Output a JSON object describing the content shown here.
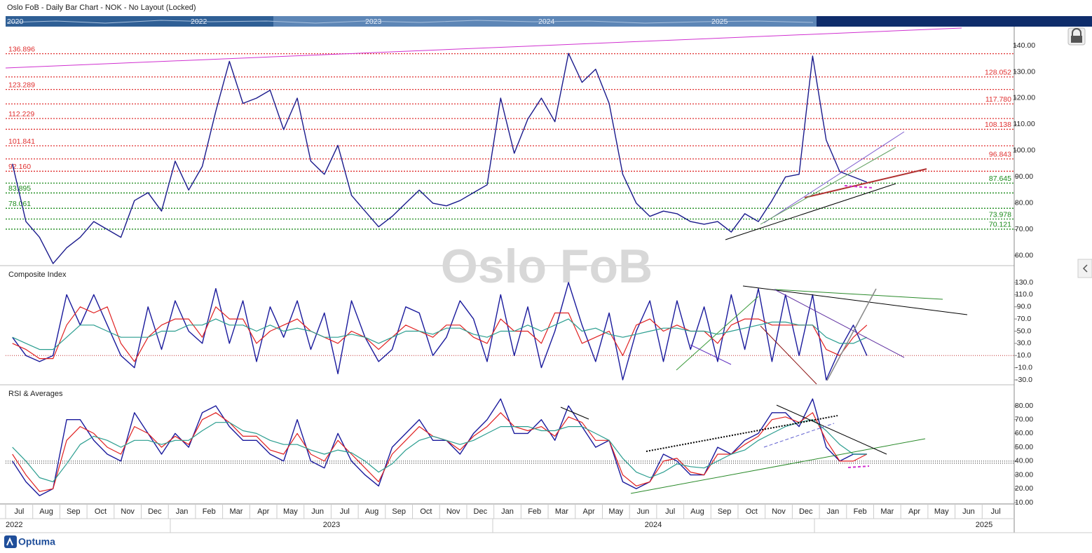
{
  "header": {
    "title": "Oslo FoB - Daily Bar Chart - NOK - No Layout (Locked)",
    "navigator_years": [
      "2020",
      "2022",
      "2023",
      "2024",
      "2025"
    ]
  },
  "watermark": "Oslo FoB",
  "logo": "Optuma",
  "chart_data": [
    {
      "type": "line",
      "series": [
        {
          "name": "Oslo FoB",
          "color": "#1a1a8c",
          "values": [
            95,
            73,
            67,
            57,
            63,
            67,
            73,
            70,
            67,
            81,
            84,
            77,
            96,
            85,
            94,
            115,
            134,
            118,
            120,
            123,
            108,
            120,
            96,
            91,
            102,
            83,
            77,
            71,
            75,
            80,
            85,
            80,
            79,
            81,
            84,
            87,
            120,
            99,
            112,
            120,
            111,
            137,
            126,
            131,
            118,
            91,
            80,
            75,
            77,
            76,
            73,
            72,
            73,
            69,
            76,
            73,
            81,
            90,
            91,
            136,
            104,
            92,
            90,
            88,
            null,
            null,
            null,
            null,
            null,
            null,
            null,
            null,
            null,
            null
          ]
        }
      ],
      "ylim": [
        56.5,
        147.2
      ],
      "yticks": [
        {
          "value": 60,
          "label": "60.00"
        },
        {
          "value": 70,
          "label": "70.00"
        },
        {
          "value": 80,
          "label": "80.00"
        },
        {
          "value": 90,
          "label": "90.00"
        },
        {
          "value": 100,
          "label": "100.00"
        },
        {
          "value": 110,
          "label": "110.00"
        },
        {
          "value": 120,
          "label": "120.00"
        },
        {
          "value": 130,
          "label": "130.00"
        },
        {
          "value": 140,
          "label": "140.00"
        }
      ],
      "left_levels": {
        "values": [
          136.896,
          123.289,
          112.229,
          101.841,
          92.16,
          83.895,
          78.061
        ],
        "value_labels": [
          "136.896",
          "123.289",
          "112.229",
          "101.841",
          "92.160",
          "83.895",
          "78.061"
        ],
        "colors": [
          "#e03030",
          "#e03030",
          "#e03030",
          "#e03030",
          "#e03030",
          "#1a8a1a",
          "#1a8a1a"
        ]
      },
      "right_levels": {
        "values": [
          128.052,
          117.78,
          108.138,
          96.843,
          87.645,
          73.978,
          70.121
        ],
        "value_labels": [
          "128.052",
          "117.780",
          "108.138",
          "96.843",
          "87.645",
          "73.978",
          "70.121"
        ],
        "colors": [
          "#e03030",
          "#e03030",
          "#e03030",
          "#e03030",
          "#1a8a1a",
          "#1a8a1a",
          "#1a8a1a"
        ]
      }
    },
    {
      "type": "line",
      "title": "Composite Index",
      "series": [
        {
          "name": "Composite",
          "color": "#1a1a9c",
          "values": [
            40,
            10,
            0,
            10,
            110,
            60,
            110,
            60,
            10,
            -10,
            90,
            20,
            100,
            50,
            30,
            120,
            30,
            100,
            0,
            90,
            40,
            100,
            20,
            80,
            -20,
            100,
            40,
            0,
            20,
            90,
            80,
            10,
            40,
            100,
            70,
            0,
            110,
            10,
            90,
            -10,
            50,
            130,
            60,
            0,
            80,
            -30,
            50,
            100,
            0,
            100,
            20,
            90,
            0,
            110,
            20,
            120,
            0,
            110,
            10,
            110,
            -30,
            20,
            60,
            10,
            null,
            null,
            null,
            null,
            null,
            null,
            null,
            null,
            null,
            null
          ]
        },
        {
          "name": "Fast Average",
          "color": "#e02020",
          "values": [
            30,
            20,
            5,
            5,
            60,
            90,
            80,
            90,
            30,
            0,
            40,
            60,
            70,
            70,
            40,
            90,
            70,
            70,
            30,
            50,
            60,
            70,
            50,
            40,
            30,
            50,
            40,
            20,
            40,
            60,
            50,
            40,
            60,
            60,
            40,
            30,
            70,
            50,
            50,
            30,
            80,
            80,
            30,
            40,
            50,
            10,
            60,
            70,
            50,
            60,
            50,
            50,
            30,
            60,
            70,
            70,
            60,
            60,
            60,
            60,
            20,
            10,
            40,
            60,
            null,
            null,
            null,
            null,
            null,
            null,
            null,
            null,
            null,
            null
          ]
        },
        {
          "name": "Slow Average",
          "color": "#2a9d8f",
          "values": [
            40,
            30,
            20,
            20,
            40,
            60,
            60,
            50,
            40,
            40,
            40,
            50,
            50,
            60,
            60,
            70,
            60,
            60,
            50,
            60,
            50,
            55,
            50,
            40,
            40,
            45,
            40,
            30,
            40,
            50,
            50,
            45,
            55,
            55,
            45,
            40,
            50,
            50,
            60,
            50,
            60,
            70,
            50,
            55,
            45,
            40,
            45,
            50,
            55,
            55,
            50,
            50,
            45,
            50,
            55,
            60,
            65,
            65,
            60,
            60,
            40,
            30,
            30,
            40,
            null,
            null,
            null,
            null,
            null,
            null,
            null,
            null,
            null,
            null
          ]
        }
      ],
      "ylim": [
        -36.9,
        156.5
      ],
      "yticks": [
        {
          "value": -30,
          "label": "-30.0"
        },
        {
          "value": -10,
          "label": "-10.0"
        },
        {
          "value": 10,
          "label": "10.0"
        },
        {
          "value": 30,
          "label": "30.0"
        },
        {
          "value": 50,
          "label": "50.0"
        },
        {
          "value": 70,
          "label": "70.0"
        },
        {
          "value": 90,
          "label": "90.0"
        },
        {
          "value": 110,
          "label": "110.0"
        },
        {
          "value": 130,
          "label": "130.0"
        }
      ],
      "hlines": {
        "values": [
          10
        ],
        "color": "#c03030"
      }
    },
    {
      "type": "line",
      "title": "RSI & Averages",
      "categories": [
        "Jul",
        null,
        "Aug",
        null,
        "Sep",
        null,
        "Oct",
        null,
        "Nov",
        null,
        "Dec",
        null,
        "Jan",
        null,
        "Feb",
        null,
        "Mar",
        null,
        "Apr",
        null,
        "May",
        null,
        "Jun",
        null,
        "Jul",
        null,
        "Aug",
        null,
        "Sep",
        null,
        "Oct",
        null,
        "Nov",
        null,
        "Dec",
        null,
        "Jan",
        null,
        "Feb",
        null,
        "Mar",
        null,
        "Apr",
        null,
        "May",
        null,
        "Jun",
        null,
        "Jul",
        null,
        "Aug",
        null,
        "Sep",
        null,
        "Oct",
        null,
        "Nov",
        null,
        "Dec",
        null,
        "Jan",
        null,
        "Feb",
        null,
        "Mar",
        null,
        "Apr",
        null,
        "May",
        null,
        "Jun",
        null,
        "Jul",
        null
      ],
      "years": [
        "2022",
        "2023",
        "2024",
        "2025"
      ],
      "series": [
        {
          "name": "RSI",
          "color": "#1a1a9c",
          "values": [
            40,
            25,
            15,
            20,
            70,
            70,
            55,
            45,
            40,
            75,
            60,
            45,
            60,
            50,
            75,
            80,
            65,
            55,
            55,
            45,
            40,
            70,
            40,
            35,
            60,
            40,
            30,
            22,
            50,
            60,
            70,
            55,
            55,
            45,
            60,
            70,
            85,
            60,
            60,
            70,
            55,
            80,
            65,
            50,
            55,
            25,
            20,
            25,
            45,
            40,
            30,
            30,
            50,
            45,
            55,
            60,
            75,
            75,
            65,
            85,
            50,
            40,
            45,
            45,
            null,
            null,
            null,
            null,
            null,
            null,
            null,
            null,
            null,
            null
          ]
        },
        {
          "name": "Fast Average",
          "color": "#e02020",
          "values": [
            45,
            30,
            18,
            20,
            55,
            65,
            60,
            50,
            45,
            65,
            60,
            50,
            58,
            52,
            70,
            75,
            68,
            58,
            58,
            48,
            45,
            60,
            45,
            40,
            55,
            45,
            35,
            25,
            45,
            55,
            65,
            58,
            55,
            48,
            58,
            65,
            75,
            65,
            62,
            65,
            58,
            72,
            68,
            55,
            55,
            30,
            22,
            25,
            40,
            42,
            32,
            30,
            45,
            45,
            52,
            58,
            70,
            72,
            68,
            75,
            55,
            40,
            40,
            45,
            null,
            null,
            null,
            null,
            null,
            null,
            null,
            null,
            null,
            null
          ]
        },
        {
          "name": "Slow Average",
          "color": "#2a9d8f",
          "values": [
            50,
            40,
            28,
            25,
            38,
            52,
            58,
            55,
            50,
            55,
            55,
            52,
            55,
            55,
            62,
            68,
            68,
            62,
            60,
            55,
            52,
            52,
            48,
            45,
            48,
            46,
            40,
            32,
            38,
            48,
            55,
            58,
            55,
            52,
            55,
            60,
            65,
            65,
            65,
            62,
            62,
            65,
            65,
            60,
            55,
            42,
            32,
            28,
            32,
            38,
            36,
            35,
            40,
            45,
            48,
            55,
            60,
            65,
            68,
            70,
            62,
            52,
            45,
            45,
            null,
            null,
            null,
            null,
            null,
            null,
            null,
            null,
            null,
            null
          ]
        }
      ],
      "ylim": [
        9,
        94.7
      ],
      "yticks": [
        {
          "value": 10,
          "label": "10.00"
        },
        {
          "value": 20,
          "label": "20.00"
        },
        {
          "value": 30,
          "label": "30.00"
        },
        {
          "value": 40,
          "label": "40.00"
        },
        {
          "value": 50,
          "label": "50.00"
        },
        {
          "value": 60,
          "label": "60.00"
        },
        {
          "value": 70,
          "label": "70.00"
        },
        {
          "value": 80,
          "label": "80.00"
        }
      ],
      "hlines": {
        "values": [
          38.5,
          40
        ],
        "color": "#222222"
      }
    }
  ]
}
